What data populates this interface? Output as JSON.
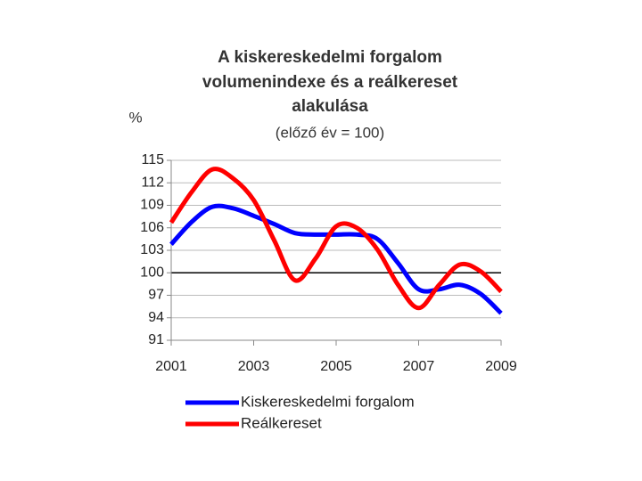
{
  "chart_data": {
    "type": "line",
    "title": [
      "A kiskereskedelmi forgalom",
      "volumenindexe és a reálkereset",
      "alakulása"
    ],
    "subtitle": "(előző év = 100)",
    "y_label": "%",
    "x": [
      2001,
      2001.5,
      2002,
      2002.5,
      2003,
      2003.5,
      2004,
      2004.5,
      2005,
      2005.5,
      2006,
      2006.5,
      2007,
      2007.5,
      2008,
      2008.5,
      2009
    ],
    "series": [
      {
        "name": "Kiskereskedelmi forgalom",
        "color": "#0000ff",
        "values": [
          103.8,
          106.8,
          108.8,
          108.6,
          107.6,
          106.5,
          105.3,
          105.1,
          105.1,
          105.1,
          104.5,
          101.3,
          97.8,
          97.8,
          98.4,
          97.2,
          94.6
        ]
      },
      {
        "name": "Reálkereset",
        "color": "#ff0000",
        "values": [
          106.7,
          110.8,
          113.8,
          112.6,
          109.7,
          104.3,
          99.0,
          101.9,
          106.2,
          106.0,
          103.1,
          98.4,
          95.3,
          98.4,
          101.1,
          100.2,
          97.5
        ]
      }
    ],
    "xlim": [
      2001,
      2009
    ],
    "xticks": [
      2001,
      2003,
      2005,
      2007,
      2009
    ],
    "ylim": [
      91,
      115
    ],
    "yticks": [
      91,
      94,
      97,
      100,
      103,
      106,
      109,
      112,
      115
    ],
    "reference_line": 100,
    "grid": true
  }
}
